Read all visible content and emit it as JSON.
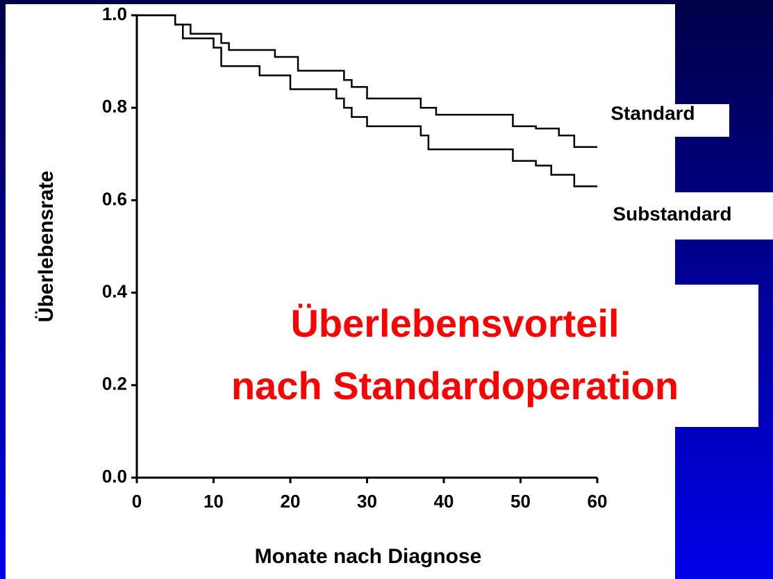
{
  "chart_data": {
    "type": "step",
    "xlabel": "Monate nach Diagnose",
    "ylabel": "Überlebensrate",
    "annotation": [
      "Überlebensvorteil",
      "nach Standardoperation"
    ],
    "xlim": [
      0,
      60
    ],
    "xticks": [
      0,
      10,
      20,
      30,
      40,
      50,
      60
    ],
    "ylim": [
      0,
      1
    ],
    "yticks": [
      {
        "value": 0,
        "label": "0.0"
      },
      0.2,
      0.4,
      0.6,
      0.8,
      {
        "value": 1,
        "label": "1.0"
      }
    ],
    "series": [
      {
        "name": "Standard",
        "color": "#000000",
        "x": [
          0,
          5,
          7,
          11,
          12,
          18,
          21,
          27,
          28,
          30,
          37,
          39,
          49,
          52,
          55,
          57,
          60
        ],
        "values": [
          1.0,
          0.98,
          0.96,
          0.94,
          0.925,
          0.91,
          0.88,
          0.86,
          0.845,
          0.82,
          0.8,
          0.785,
          0.76,
          0.755,
          0.74,
          0.715,
          0.715
        ]
      },
      {
        "name": "Substandard",
        "color": "#000000",
        "x": [
          0,
          5,
          6,
          10,
          11,
          16,
          20,
          26,
          27,
          28,
          30,
          37,
          38,
          49,
          52,
          54,
          57,
          60
        ],
        "values": [
          1.0,
          0.98,
          0.95,
          0.93,
          0.89,
          0.87,
          0.84,
          0.82,
          0.8,
          0.78,
          0.76,
          0.74,
          0.71,
          0.685,
          0.675,
          0.655,
          0.63,
          0.63
        ]
      }
    ]
  }
}
